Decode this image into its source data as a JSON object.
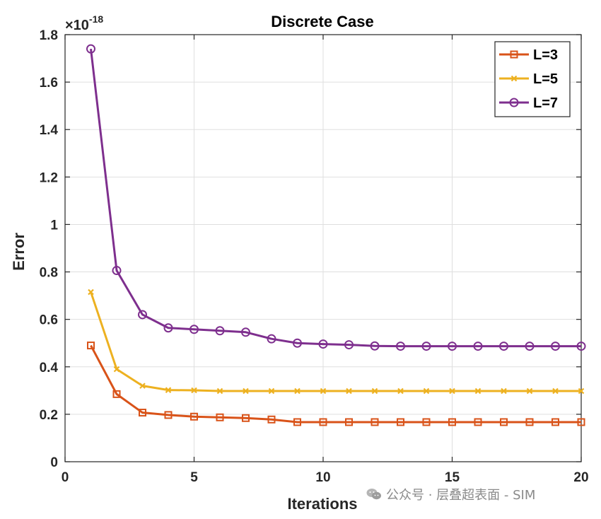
{
  "chart_data": {
    "type": "line",
    "title": "Discrete Case",
    "xlabel": "Iterations",
    "ylabel": "Error",
    "y_exponent_label": "×10",
    "y_exponent_power": "-18",
    "xlim": [
      0,
      20
    ],
    "ylim": [
      0,
      1.8
    ],
    "x_ticks": [
      0,
      5,
      10,
      15,
      20
    ],
    "x_tick_labels": [
      "0",
      "5",
      "10",
      "15",
      "20"
    ],
    "y_ticks": [
      0,
      0.2,
      0.4,
      0.6,
      0.8,
      1.0,
      1.2,
      1.4,
      1.6,
      1.8
    ],
    "y_tick_labels": [
      "0",
      "0.2",
      "0.4",
      "0.6",
      "0.8",
      "1",
      "1.2",
      "1.4",
      "1.6",
      "1.8"
    ],
    "grid": true,
    "legend_position": "top-right",
    "x": [
      1,
      2,
      3,
      4,
      5,
      6,
      7,
      8,
      9,
      10,
      11,
      12,
      13,
      14,
      15,
      16,
      17,
      18,
      19,
      20
    ],
    "series": [
      {
        "name": "L=3",
        "color": "#D95319",
        "marker": "square",
        "values": [
          0.49,
          0.285,
          0.207,
          0.197,
          0.19,
          0.187,
          0.184,
          0.178,
          0.167,
          0.167,
          0.167,
          0.167,
          0.167,
          0.167,
          0.167,
          0.167,
          0.167,
          0.167,
          0.167,
          0.167
        ]
      },
      {
        "name": "L=5",
        "color": "#EDB120",
        "marker": "x",
        "values": [
          0.715,
          0.39,
          0.32,
          0.302,
          0.301,
          0.298,
          0.298,
          0.298,
          0.298,
          0.298,
          0.298,
          0.298,
          0.298,
          0.298,
          0.298,
          0.298,
          0.298,
          0.298,
          0.298,
          0.298
        ]
      },
      {
        "name": "L=7",
        "color": "#7E2F8E",
        "marker": "circle",
        "values": [
          1.74,
          0.806,
          0.62,
          0.564,
          0.558,
          0.552,
          0.546,
          0.518,
          0.5,
          0.496,
          0.493,
          0.488,
          0.487,
          0.487,
          0.487,
          0.487,
          0.487,
          0.487,
          0.487,
          0.487
        ]
      }
    ]
  },
  "watermark": {
    "icon": "wechat-icon",
    "text": "公众号 · 层叠超表面 - SIM"
  }
}
